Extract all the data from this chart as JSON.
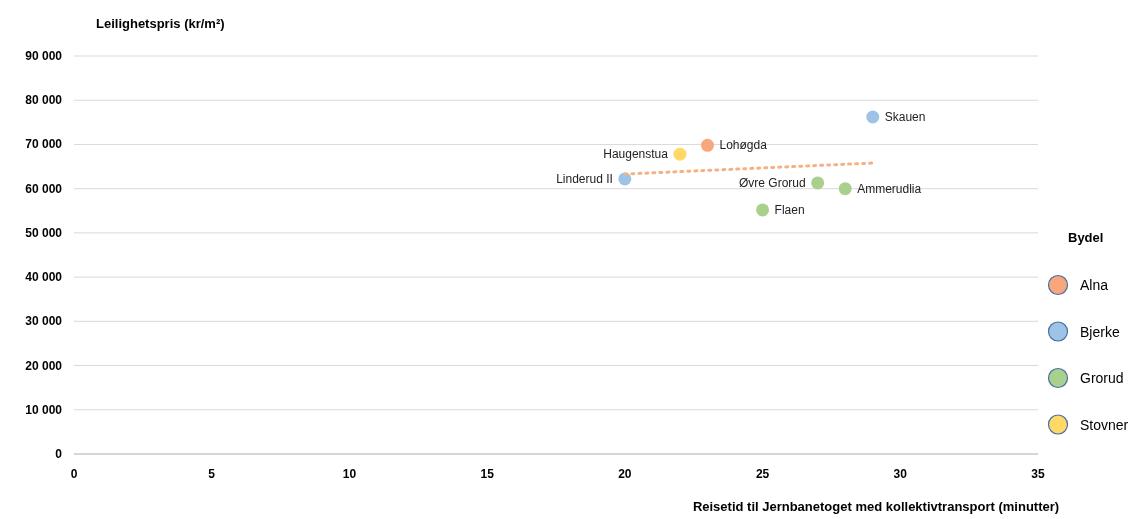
{
  "chart_data": {
    "type": "scatter",
    "ylabel": "Leilighetspris (kr/m²)",
    "xlabel": "Reisetid til Jernbanetoget med kollektivtransport (minutter)",
    "legend_title": "Bydel",
    "series": [
      {
        "name": "Alna",
        "color": "#f8a77c",
        "x": [
          23
        ],
        "values": [
          69800
        ]
      },
      {
        "name": "Bjerke",
        "color": "#9dc3e6",
        "x": [
          29,
          20
        ],
        "values": [
          76200,
          62200
        ]
      },
      {
        "name": "Grorud",
        "color": "#a9d18e",
        "x": [
          27,
          28,
          25
        ],
        "values": [
          61300,
          60000,
          55200
        ]
      },
      {
        "name": "Stovner",
        "color": "#ffd966",
        "x": [
          22
        ],
        "values": [
          67800
        ]
      },
      {
        "type": "line",
        "color": "#f4b183",
        "line_style": "dotted",
        "marker": "none",
        "x": [
          20,
          29
        ],
        "values": [
          63300,
          65800
        ]
      }
    ],
    "annotations": [
      {
        "text": "Lohøgda",
        "x": 23,
        "y": 69800
      },
      {
        "text": "Skauen",
        "x": 29,
        "y": 76200
      },
      {
        "text": "Linderud II",
        "x": 20,
        "y": 62200
      },
      {
        "text": "Øvre Grorud",
        "x": 27,
        "y": 61300
      },
      {
        "text": "Ammerudlia",
        "x": 28,
        "y": 60000
      },
      {
        "text": "Flaen",
        "x": 25,
        "y": 55200
      },
      {
        "text": "Haugenstua",
        "x": 22,
        "y": 67800
      }
    ],
    "xlim": [
      0,
      35
    ],
    "xticks": [
      0,
      5,
      10,
      15,
      20,
      25,
      30,
      35
    ],
    "ylim": [
      0,
      90000
    ],
    "yticks": [
      {
        "value": 0,
        "label": "0"
      },
      {
        "value": 10000,
        "label": "10 000"
      },
      {
        "value": 20000,
        "label": "20 000"
      },
      {
        "value": 30000,
        "label": "30 000"
      },
      {
        "value": 40000,
        "label": "40 000"
      },
      {
        "value": 50000,
        "label": "50 000"
      },
      {
        "value": 60000,
        "label": "60 000"
      },
      {
        "value": 70000,
        "label": "70 000"
      },
      {
        "value": 80000,
        "label": "80 000"
      },
      {
        "value": 90000,
        "label": "90 000"
      }
    ],
    "grid": "y",
    "legend": "right",
    "marker": "circle"
  }
}
